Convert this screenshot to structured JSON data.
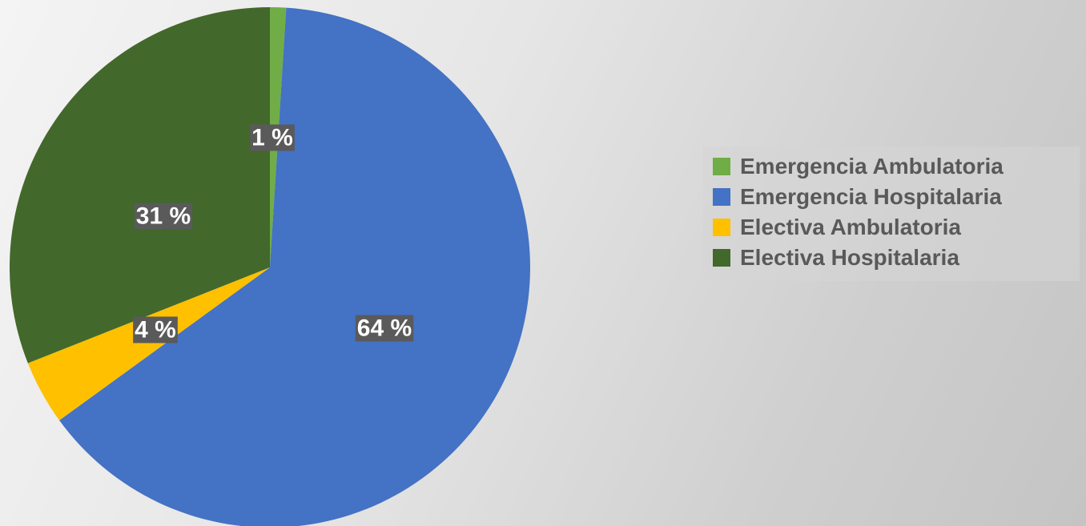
{
  "chart_data": {
    "type": "pie",
    "title": "",
    "categories": [
      "Emergencia Ambulatoria",
      "Emergencia Hospitalaria",
      "Electiva Ambulatoria",
      "Electiva Hospitalaria"
    ],
    "values": [
      1,
      64,
      4,
      31
    ],
    "data_labels": [
      "1 %",
      "64 %",
      "4 %",
      "31 %"
    ],
    "colors": [
      "#70ad47",
      "#4472c4",
      "#ffc000",
      "#43682b"
    ],
    "legend_position": "right"
  },
  "legend": {
    "items": [
      {
        "label": "Emergencia Ambulatoria",
        "color": "#70ad47"
      },
      {
        "label": "Emergencia Hospitalaria",
        "color": "#4472c4"
      },
      {
        "label": "Electiva Ambulatoria",
        "color": "#ffc000"
      },
      {
        "label": "Electiva Hospitalaria",
        "color": "#43682b"
      }
    ]
  }
}
